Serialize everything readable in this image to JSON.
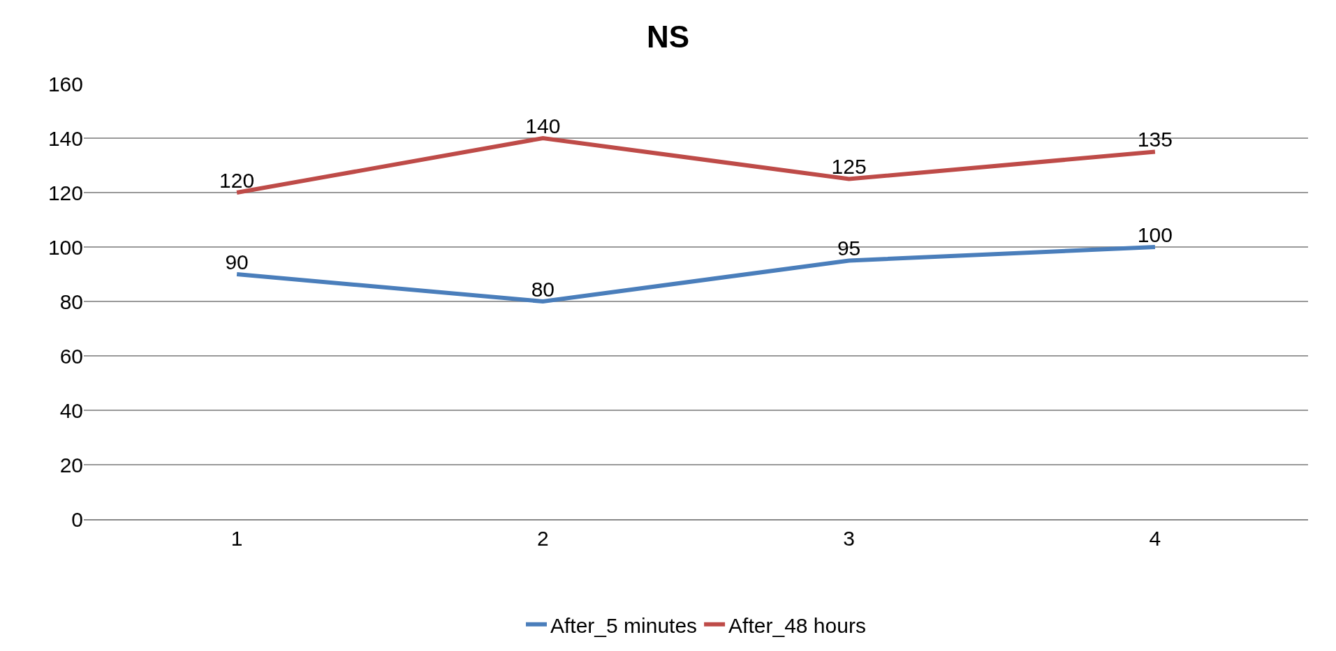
{
  "chart_data": {
    "type": "line",
    "title": "NS",
    "categories": [
      "1",
      "2",
      "3",
      "4"
    ],
    "series": [
      {
        "name": "After_5 minutes",
        "color": "#4a7ebb",
        "values": [
          90,
          80,
          95,
          100
        ]
      },
      {
        "name": "After_48 hours",
        "color": "#be4b48",
        "values": [
          120,
          140,
          125,
          135
        ]
      }
    ],
    "ylim": [
      0,
      160
    ],
    "yticks": [
      0,
      20,
      40,
      60,
      80,
      100,
      120,
      140,
      160
    ],
    "grid": "y",
    "legend": "bottom",
    "marker": "none",
    "line_style": "solid",
    "data_labels": true
  }
}
